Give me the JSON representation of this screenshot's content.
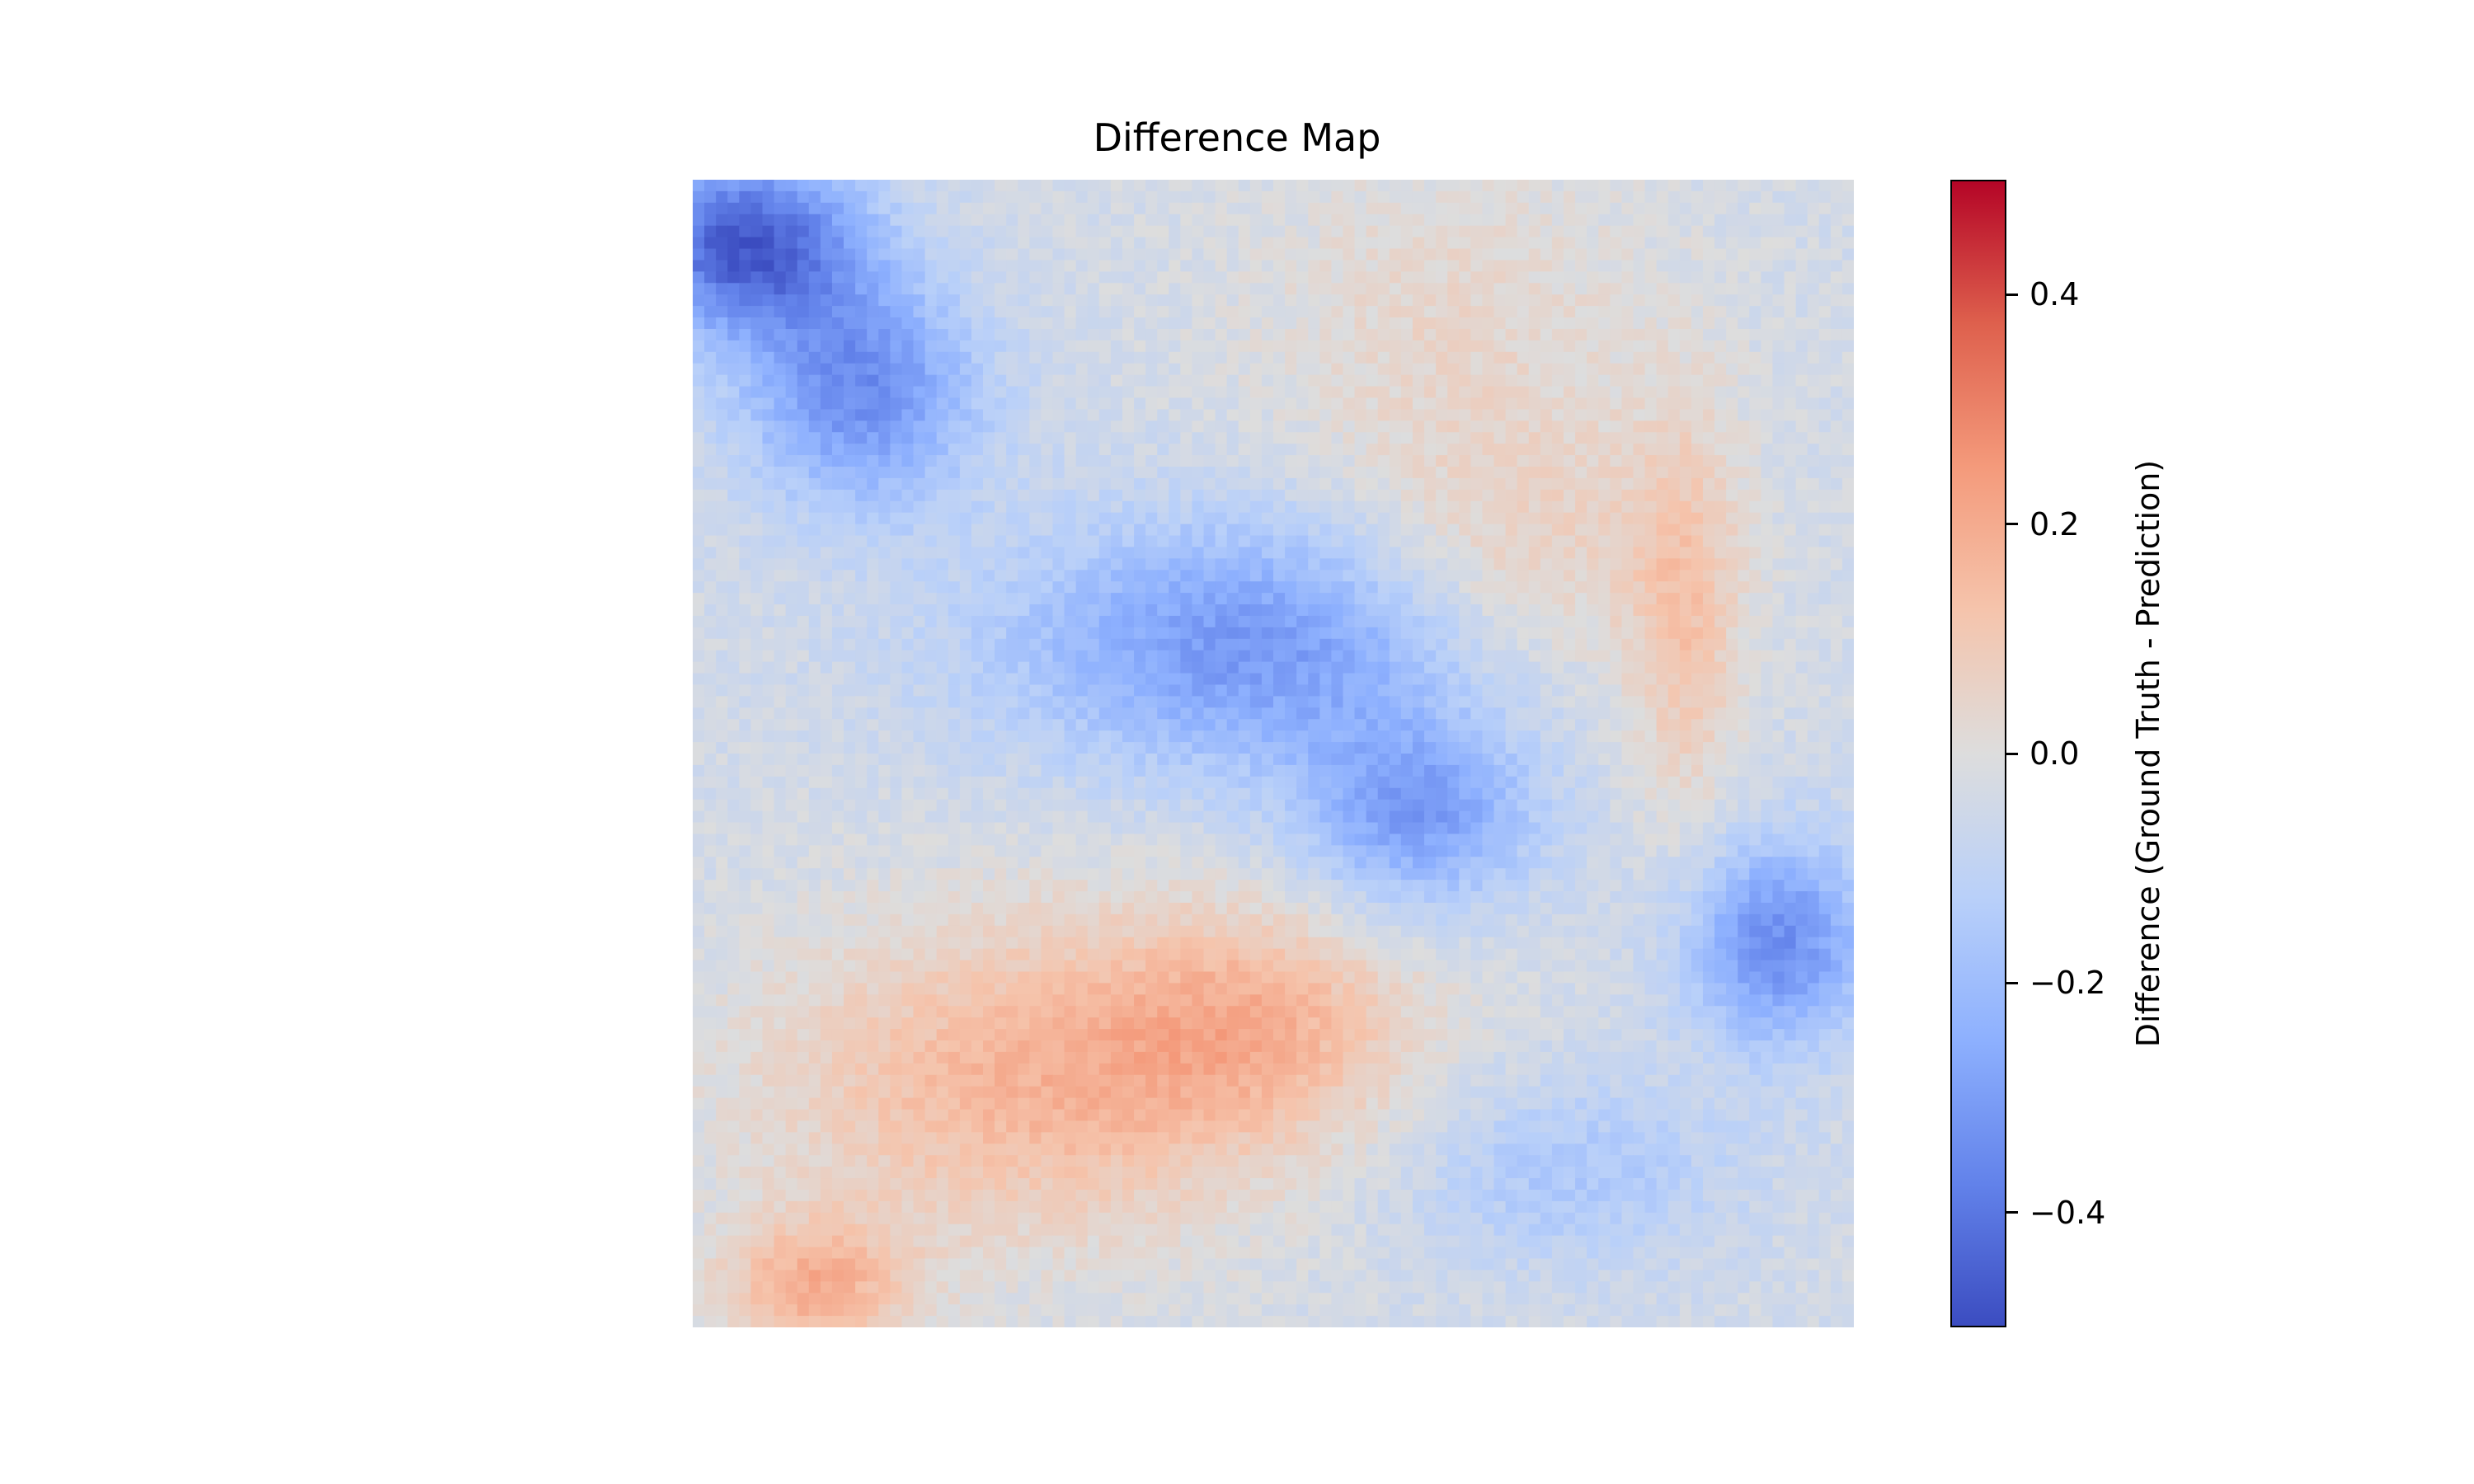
{
  "chart_data": {
    "type": "heatmap",
    "title": "Difference Map",
    "axes_visible": false,
    "grid": false,
    "colormap": "coolwarm",
    "colormap_stops": [
      "#3b4cc0",
      "#6282ea",
      "#8db0fe",
      "#b9d0f9",
      "#dddddd",
      "#f5c4ac",
      "#f49a7b",
      "#de604d",
      "#b40426"
    ],
    "vmin": -0.5,
    "vmax": 0.5,
    "colorbar": {
      "label": "Difference (Ground Truth - Prediction)",
      "position": "right",
      "ticks": [
        0.4,
        0.2,
        0.0,
        -0.2,
        -0.4
      ],
      "tick_labels": [
        "0.4",
        "0.2",
        "0.0",
        "−0.2",
        "−0.4"
      ]
    },
    "grid_size": [
      100,
      100
    ],
    "regions": [
      {
        "name": "top-left blue cluster",
        "center": [
          5,
          4
        ],
        "spread": [
          8,
          10
        ],
        "value": -0.42
      },
      {
        "name": "upper-left blue ridge",
        "center": [
          18,
          14
        ],
        "spread": [
          10,
          10
        ],
        "value": -0.3
      },
      {
        "name": "central blue diagonal band",
        "center": [
          40,
          48
        ],
        "spread": [
          11,
          22
        ],
        "value": -0.28
      },
      {
        "name": "lower-center blue tail",
        "center": [
          55,
          62
        ],
        "spread": [
          8,
          10
        ],
        "value": -0.25
      },
      {
        "name": "right blue patch",
        "center": [
          66,
          93
        ],
        "spread": [
          9,
          8
        ],
        "value": -0.3
      },
      {
        "name": "bottom-right blue",
        "center": [
          86,
          75
        ],
        "spread": [
          8,
          14
        ],
        "value": -0.12
      },
      {
        "name": "top-center red",
        "center": [
          12,
          65
        ],
        "spread": [
          16,
          18
        ],
        "value": 0.08
      },
      {
        "name": "center-right red ridge",
        "center": [
          38,
          85
        ],
        "spread": [
          18,
          5
        ],
        "value": 0.15
      },
      {
        "name": "center red",
        "center": [
          34,
          70
        ],
        "spread": [
          12,
          14
        ],
        "value": 0.13
      },
      {
        "name": "bottom-left red",
        "center": [
          78,
          28
        ],
        "spread": [
          14,
          22
        ],
        "value": 0.2
      },
      {
        "name": "bottom-center red",
        "center": [
          73,
          48
        ],
        "spread": [
          10,
          14
        ],
        "value": 0.17
      },
      {
        "name": "bottom-left corner red",
        "center": [
          96,
          10
        ],
        "spread": [
          6,
          8
        ],
        "value": 0.22
      }
    ]
  }
}
